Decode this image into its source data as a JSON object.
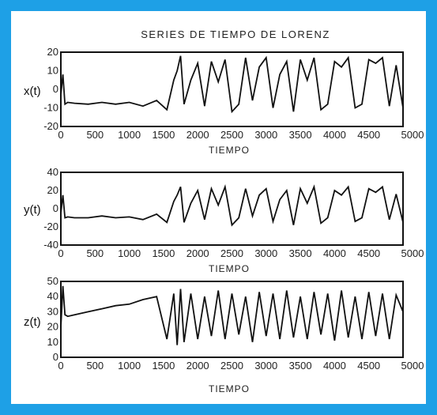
{
  "colors": {
    "background": "#1ea0e6",
    "panel": "#ffffff",
    "trace": "#111111"
  },
  "chart_data": [
    {
      "type": "line",
      "title": "SERIES DE TIEMPO DE LORENZ",
      "xlabel": "TIEMPO",
      "ylabel": "x(t)",
      "xlim": [
        0,
        5000
      ],
      "ylim": [
        -20,
        20
      ],
      "xticks": [
        0,
        500,
        1000,
        1500,
        2000,
        2500,
        3000,
        3500,
        4000,
        4500,
        5000
      ],
      "xtick_labels": [
        "0",
        "500",
        "1000",
        "1500",
        "2000",
        "2500",
        "3000",
        "3500",
        "4000",
        "4500",
        "5000"
      ],
      "yticks": [
        -20,
        -10,
        0,
        10,
        20
      ],
      "ytick_labels": [
        "-20",
        "-10",
        "0",
        "10",
        "20"
      ],
      "x": [
        0,
        30,
        60,
        100,
        200,
        400,
        600,
        800,
        1000,
        1200,
        1400,
        1550,
        1650,
        1700,
        1750,
        1800,
        1900,
        2000,
        2100,
        2200,
        2300,
        2400,
        2500,
        2600,
        2700,
        2800,
        2900,
        3000,
        3100,
        3200,
        3300,
        3400,
        3500,
        3600,
        3700,
        3800,
        3900,
        4000,
        4100,
        4200,
        4300,
        4400,
        4500,
        4600,
        4700,
        4800,
        4900,
        5000
      ],
      "y": [
        -3,
        8,
        -8,
        -7,
        -7.5,
        -8,
        -7,
        -8,
        -7,
        -9,
        -6,
        -11,
        5,
        10,
        18,
        -8,
        5,
        14,
        -9,
        15,
        4,
        16,
        -12,
        -8,
        17,
        -6,
        12,
        17,
        -10,
        8,
        15,
        -12,
        16,
        5,
        17,
        -11,
        -8,
        15,
        12,
        17,
        -10,
        -8,
        16,
        14,
        17,
        -9,
        13,
        -10
      ]
    },
    {
      "type": "line",
      "xlabel": "TIEMPO",
      "ylabel": "y(t)",
      "xlim": [
        0,
        5000
      ],
      "ylim": [
        -40,
        40
      ],
      "xticks": [
        0,
        500,
        1000,
        1500,
        2000,
        2500,
        3000,
        3500,
        4000,
        4500,
        5000
      ],
      "xtick_labels": [
        "0",
        "500",
        "1000",
        "1500",
        "2000",
        "2500",
        "3000",
        "3500",
        "4000",
        "4500",
        "5000"
      ],
      "yticks": [
        -40,
        -20,
        0,
        20,
        40
      ],
      "ytick_labels": [
        "-40",
        "-20",
        "0",
        "20",
        "40"
      ],
      "x": [
        0,
        30,
        60,
        100,
        200,
        400,
        600,
        800,
        1000,
        1200,
        1400,
        1550,
        1650,
        1700,
        1750,
        1800,
        1900,
        2000,
        2100,
        2200,
        2300,
        2400,
        2500,
        2600,
        2700,
        2800,
        2900,
        3000,
        3100,
        3200,
        3300,
        3400,
        3500,
        3600,
        3700,
        3800,
        3900,
        4000,
        4100,
        4200,
        4300,
        4400,
        4500,
        4600,
        4700,
        4800,
        4900,
        5000
      ],
      "y": [
        -5,
        15,
        -10,
        -9,
        -10,
        -10,
        -8,
        -10,
        -9,
        -12,
        -6,
        -15,
        8,
        15,
        24,
        -15,
        6,
        20,
        -12,
        22,
        4,
        24,
        -18,
        -10,
        22,
        -8,
        15,
        22,
        -14,
        10,
        20,
        -18,
        22,
        6,
        24,
        -16,
        -10,
        20,
        15,
        24,
        -14,
        -10,
        22,
        18,
        24,
        -12,
        16,
        -15
      ]
    },
    {
      "type": "line",
      "xlabel": "TIEMPO",
      "ylabel": "z(t)",
      "xlim": [
        0,
        5000
      ],
      "ylim": [
        0,
        50
      ],
      "xticks": [
        0,
        500,
        1000,
        1500,
        2000,
        2500,
        3000,
        3500,
        4000,
        4500,
        5000
      ],
      "xtick_labels": [
        "0",
        "500",
        "1000",
        "1500",
        "2000",
        "2500",
        "3000",
        "3500",
        "4000",
        "4500",
        "5000"
      ],
      "yticks": [
        0,
        10,
        20,
        30,
        40,
        50
      ],
      "ytick_labels": [
        "0",
        "10",
        "20",
        "30",
        "40",
        "50"
      ],
      "x": [
        0,
        30,
        60,
        100,
        200,
        400,
        600,
        800,
        1000,
        1200,
        1400,
        1550,
        1650,
        1700,
        1750,
        1800,
        1900,
        2000,
        2100,
        2200,
        2300,
        2400,
        2500,
        2600,
        2700,
        2800,
        2900,
        3000,
        3100,
        3200,
        3300,
        3400,
        3500,
        3600,
        3700,
        3800,
        3900,
        4000,
        4100,
        4200,
        4300,
        4400,
        4500,
        4600,
        4700,
        4800,
        4900,
        5000
      ],
      "y": [
        20,
        47,
        28,
        27,
        28,
        30,
        32,
        34,
        35,
        38,
        40,
        12,
        42,
        8,
        45,
        10,
        42,
        12,
        40,
        14,
        44,
        12,
        42,
        15,
        40,
        10,
        43,
        14,
        42,
        12,
        44,
        13,
        40,
        12,
        43,
        15,
        42,
        11,
        44,
        13,
        40,
        12,
        43,
        14,
        42,
        12,
        41,
        30
      ]
    }
  ]
}
